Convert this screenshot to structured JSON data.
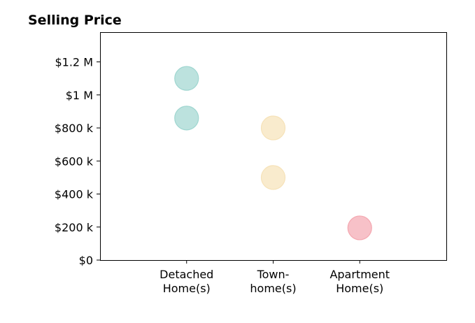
{
  "chart_data": {
    "type": "scatter",
    "title": "Selling Price",
    "xlabel": "",
    "ylabel": "",
    "categories": [
      [
        "Detached",
        "Home(s)"
      ],
      [
        "Town-",
        "home(s)"
      ],
      [
        "Apartment",
        "Home(s)"
      ]
    ],
    "xlim": [
      0,
      4
    ],
    "ylim": [
      0,
      1380000
    ],
    "yticks": [
      0,
      200000,
      400000,
      600000,
      800000,
      1000000,
      1200000
    ],
    "ytick_labels": [
      "$0",
      "$200 k",
      "$400 k",
      "$600 k",
      "$800 k",
      "$1 M",
      "$1.2 M"
    ],
    "grid": false,
    "legend": "none",
    "points": [
      {
        "category": 1,
        "value": 1100000,
        "color": "#9fd6d0"
      },
      {
        "category": 1,
        "value": 860000,
        "color": "#9fd6d0"
      },
      {
        "category": 2,
        "value": 800000,
        "color": "#f6e2b8"
      },
      {
        "category": 2,
        "value": 500000,
        "color": "#f6e2b8"
      },
      {
        "category": 3,
        "value": 195000,
        "color": "#f4a7b0"
      }
    ]
  }
}
